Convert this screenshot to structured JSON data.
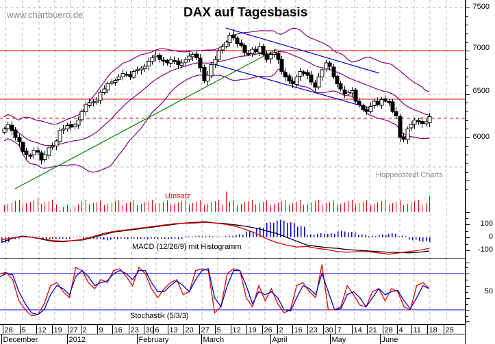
{
  "header": {
    "title": "DAX auf Tagesbasis",
    "watermark": "www.chartbuero.de",
    "credit": "Hoppenstedt Charts"
  },
  "panels": {
    "volume_label": "Umsatz",
    "macd_label": "MACD (12/26/9) mit Histogramm",
    "stoch_label": "Stochastik (5/3/3)"
  },
  "axes": {
    "price_ticks": [
      "7500",
      "7000",
      "6500",
      "6000"
    ],
    "macd_ticks": [
      "100",
      "0",
      "-100"
    ],
    "stoch_ticks": [
      "50"
    ],
    "day_ticks": [
      "28",
      "5",
      "12",
      "19",
      "27",
      "2",
      "9",
      "16",
      "23",
      "30",
      "6",
      "13",
      "20",
      "27",
      "5",
      "12",
      "19",
      "26",
      "2",
      "16",
      "23",
      "30",
      "7",
      "14",
      "21",
      "28",
      "4",
      "11",
      "18",
      "25"
    ],
    "month_labels": [
      "December",
      "2012",
      "February",
      "March",
      "April",
      "May",
      "June"
    ]
  },
  "colors": {
    "candle": "#000000",
    "bollinger": "#800080",
    "resistance": "#e00000",
    "trend_channel": "#0000cc",
    "uptrend": "#008000",
    "volume": "#e00000",
    "macd_line": "#000000",
    "macd_signal": "#e00000",
    "macd_hist": "#0000cc",
    "stoch_k": "#e00000",
    "stoch_d": "#0000cc",
    "grid": "#b4b4b4"
  },
  "chart_data": [
    {
      "type": "candlestick",
      "title": "DAX auf Tagesbasis",
      "xlabel": "",
      "ylabel": "",
      "ylim": [
        5500,
        7600
      ],
      "x_range": [
        "2011-11-28",
        "2012-06-29"
      ],
      "grid": true,
      "horizontal_lines": [
        {
          "value": 7000,
          "style": "solid",
          "color": "#e00000"
        },
        {
          "value": 6440,
          "style": "solid",
          "color": "#e00000"
        },
        {
          "value": 6225,
          "style": "dashed",
          "color": "#e00000"
        }
      ],
      "trendlines": [
        {
          "name": "uptrend",
          "color": "#008000",
          "from": [
            "2011-12-05",
            5620
          ],
          "to": [
            "2012-04-02",
            6990
          ]
        },
        {
          "name": "channel-upper",
          "color": "#0000cc",
          "from": [
            "2012-03-14",
            7230
          ],
          "to": [
            "2012-05-04",
            6730
          ]
        },
        {
          "name": "channel-lower",
          "color": "#0000cc",
          "from": [
            "2012-03-06",
            6820
          ],
          "to": [
            "2012-05-18",
            6220
          ]
        }
      ],
      "approx_closes": [
        6100,
        6150,
        6080,
        6000,
        5950,
        5840,
        5800,
        5790,
        5850,
        5830,
        5740,
        5800,
        5880,
        5900,
        5960,
        6080,
        6100,
        6140,
        6120,
        6150,
        6200,
        6300,
        6380,
        6400,
        6410,
        6420,
        6520,
        6560,
        6620,
        6640,
        6660,
        6700,
        6740,
        6720,
        6700,
        6760,
        6780,
        6800,
        6820,
        6880,
        6920,
        6950,
        6900,
        6880,
        6860,
        6900,
        6880,
        6840,
        6860,
        6900,
        6940,
        6960,
        6920,
        6800,
        6650,
        6720,
        6840,
        6900,
        7000,
        7050,
        7100,
        7180,
        7150,
        7080,
        7060,
        6980,
        6960,
        7020,
        6990,
        7050,
        6960,
        6900,
        6960,
        6980,
        6900,
        6760,
        6700,
        6650,
        6620,
        6700,
        6760,
        6740,
        6720,
        6640,
        6580,
        6700,
        6780,
        6860,
        6820,
        6700,
        6620,
        6560,
        6500,
        6520,
        6540,
        6420,
        6380,
        6320,
        6300,
        6360,
        6420,
        6380,
        6440,
        6420,
        6400,
        6300,
        6250,
        6000,
        5980,
        6100,
        6150,
        6200,
        6180,
        6160,
        6180,
        6240
      ],
      "bollinger": {
        "period": 20,
        "visible": true
      }
    },
    {
      "type": "bar",
      "title": "Umsatz",
      "note": "daily trading volume, unitless bars"
    },
    {
      "type": "line",
      "title": "MACD (12/26/9) mit Histogramm",
      "ylim": [
        -150,
        150
      ],
      "yticks": [
        100,
        0,
        -100
      ],
      "series": [
        {
          "name": "MACD",
          "values": [
            -40,
            -10,
            10,
            0,
            -15,
            -30,
            -35,
            -25,
            -20,
            0,
            20,
            40,
            50,
            60,
            70,
            80,
            90,
            100,
            110,
            115,
            120,
            110,
            105,
            95,
            85,
            70,
            50,
            30,
            0,
            -30,
            -60,
            -70,
            -80,
            -85,
            -95,
            -100,
            -105,
            -110,
            -115,
            -115,
            -120,
            -115,
            -105
          ]
        },
        {
          "name": "Signal",
          "values": [
            -20,
            -5,
            5,
            0,
            -10,
            -25,
            -30,
            -25,
            -15,
            5,
            30,
            45,
            55,
            65,
            75,
            85,
            95,
            105,
            108,
            110,
            115,
            110,
            100,
            85,
            60,
            30,
            -10,
            -40,
            -60,
            -75,
            -70,
            -85,
            -95,
            -110,
            -115,
            -110,
            -110,
            -120,
            -130,
            -120,
            -110,
            -100,
            -85
          ]
        }
      ]
    },
    {
      "type": "line",
      "title": "Stochastik (5/3/3)",
      "ylim": [
        0,
        100
      ],
      "reference_lines": [
        80,
        20
      ],
      "yticks": [
        50
      ],
      "series": [
        {
          "name": "%K",
          "values": [
            80,
            82,
            70,
            35,
            20,
            10,
            12,
            30,
            60,
            65,
            50,
            40,
            90,
            85,
            65,
            55,
            70,
            65,
            85,
            88,
            75,
            60,
            90,
            80,
            55,
            40,
            55,
            65,
            70,
            45,
            50,
            85,
            88,
            85,
            15,
            25,
            80,
            88,
            85,
            40,
            25,
            60,
            35,
            55,
            30,
            15,
            20,
            60,
            65,
            50,
            40,
            95,
            20,
            20,
            25,
            60,
            45,
            28,
            25,
            50,
            55,
            35,
            55,
            50,
            25,
            20,
            60,
            65,
            55
          ]
        },
        {
          "name": "%D",
          "values": [
            75,
            80,
            78,
            50,
            30,
            15,
            12,
            20,
            45,
            60,
            55,
            45,
            75,
            85,
            75,
            60,
            65,
            68,
            80,
            85,
            80,
            70,
            85,
            85,
            65,
            50,
            50,
            60,
            68,
            60,
            50,
            70,
            85,
            88,
            40,
            25,
            60,
            85,
            85,
            60,
            30,
            50,
            45,
            50,
            40,
            20,
            18,
            40,
            60,
            55,
            45,
            80,
            50,
            20,
            22,
            45,
            50,
            40,
            25,
            40,
            55,
            45,
            50,
            52,
            35,
            22,
            40,
            60,
            55
          ]
        }
      ]
    }
  ]
}
